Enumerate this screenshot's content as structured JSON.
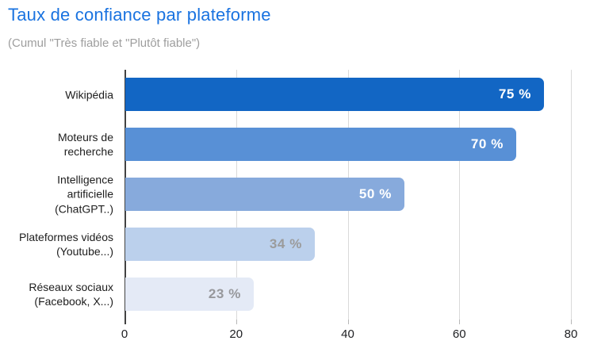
{
  "page": {
    "background": "#ffffff"
  },
  "header": {
    "title": "Taux de confiance par plateforme",
    "subtitle": "(Cumul \"Très fiable et \"Plutôt fiable\")",
    "title_color": "#1A73E0",
    "subtitle_color": "#9E9E9E"
  },
  "chart_data": {
    "type": "bar",
    "orientation": "horizontal",
    "title": "Taux de confiance par plateforme",
    "subtitle": "(Cumul \"Très fiable et \"Plutôt fiable\")",
    "categories": [
      "Wikipédia",
      "Moteurs de\nrecherche",
      "Intelligence\nartificielle\n(ChatGPT..)",
      "Plateformes vidéos\n(Youtube...)",
      "Réseaux sociaux\n(Facebook, X...)"
    ],
    "values": [
      75,
      70,
      50,
      34,
      23
    ],
    "value_labels": [
      "75 %",
      "70 %",
      "50 %",
      "34 %",
      "23 %"
    ],
    "bar_colors": [
      "#1266C4",
      "#5890D6",
      "#87AADC",
      "#BBD0EC",
      "#E4EAF6"
    ],
    "value_label_colors": [
      "#FFFFFF",
      "#FFFFFF",
      "#FFFFFF",
      "#9B9B9B",
      "#97989C"
    ],
    "xlabel": "",
    "ylabel": "",
    "xlim": [
      0,
      80
    ],
    "x_ticks": [
      0,
      20,
      40,
      60,
      80
    ],
    "grid": true,
    "legend": false,
    "gridline_color": "#DADADA",
    "axis_line_color": "#424242",
    "tick_label_color": "#202124"
  }
}
